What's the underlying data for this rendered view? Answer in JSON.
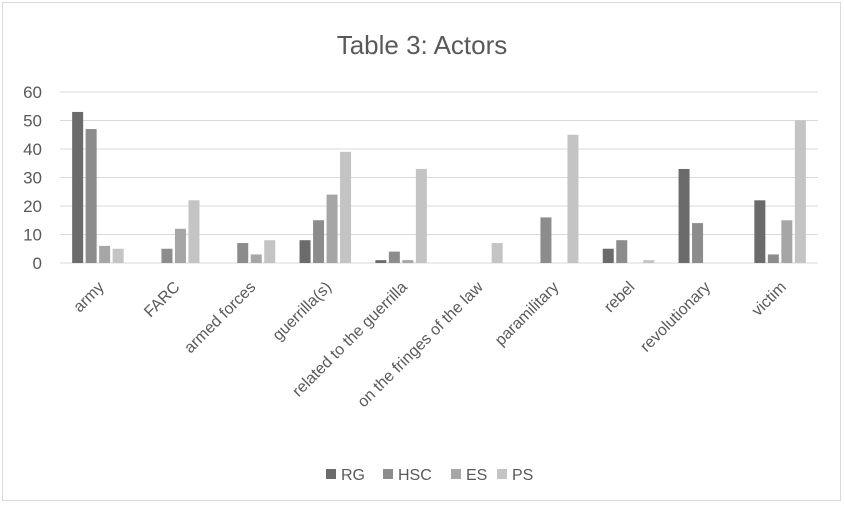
{
  "chart_data": {
    "type": "bar",
    "title": "Table 3: Actors",
    "xlabel": "",
    "ylabel": "",
    "ylim": [
      0,
      60
    ],
    "yticks": [
      0,
      10,
      20,
      30,
      40,
      50,
      60
    ],
    "grid": true,
    "legend_position": "bottom",
    "categories": [
      "army",
      "FARC",
      "armed forces",
      "guerrilla(s)",
      "related to the guerrilla",
      "on the fringes of the law",
      "paramilitary",
      "rebel",
      "revolutionary",
      "victim"
    ],
    "series": [
      {
        "name": "RG",
        "color": "#6b6b6b",
        "values": [
          53,
          0,
          0,
          8,
          1,
          0,
          0,
          5,
          33,
          22
        ]
      },
      {
        "name": "HSC",
        "color": "#8c8c8c",
        "values": [
          47,
          5,
          7,
          15,
          4,
          0,
          16,
          8,
          14,
          3
        ]
      },
      {
        "name": "ES",
        "color": "#a6a6a6",
        "values": [
          6,
          12,
          3,
          24,
          1,
          0,
          0,
          0,
          0,
          15
        ]
      },
      {
        "name": "PS",
        "color": "#c4c4c4",
        "values": [
          5,
          22,
          8,
          39,
          33,
          7,
          45,
          1,
          0,
          50
        ]
      }
    ]
  }
}
